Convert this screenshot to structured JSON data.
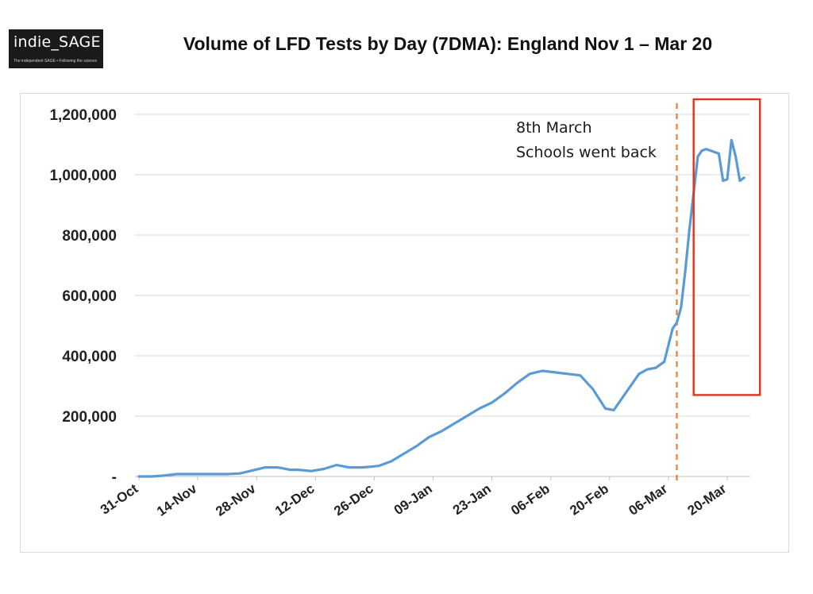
{
  "logo": {
    "text": "indie_SAGE",
    "tagline": "The independent SAGE • Following the science"
  },
  "title": "Volume of LFD Tests by Day (7DMA): England Nov 1 – Mar 20",
  "chart_data": {
    "type": "line",
    "title": "Volume of LFD Tests by Day (7DMA): England Nov 1 – Mar 20",
    "xlabel": "",
    "ylabel": "",
    "ylim": [
      0,
      1200000
    ],
    "y_ticks": [
      0,
      200000,
      400000,
      600000,
      800000,
      1000000,
      1200000
    ],
    "y_tick_labels": [
      "-",
      "200,000",
      "400,000",
      "600,000",
      "800,000",
      "1,000,000",
      "1,200,000"
    ],
    "x_tick_labels": [
      "31-Oct",
      "14-Nov",
      "28-Nov",
      "12-Dec",
      "26-Dec",
      "09-Jan",
      "23-Jan",
      "06-Feb",
      "20-Feb",
      "06-Mar",
      "20-Mar"
    ],
    "x_tick_dates": [
      "2020-10-31",
      "2020-11-14",
      "2020-11-28",
      "2020-12-12",
      "2020-12-26",
      "2021-01-09",
      "2021-01-23",
      "2021-02-06",
      "2021-02-20",
      "2021-03-06",
      "2021-03-20"
    ],
    "x_range": [
      "2020-10-31",
      "2021-03-26"
    ],
    "grid": "horizontal",
    "line_color": "#5b9bd5",
    "series": [
      {
        "x": [
          "2020-10-31",
          "2020-11-03",
          "2020-11-06",
          "2020-11-09",
          "2020-11-12",
          "2020-11-15",
          "2020-11-18",
          "2020-11-21",
          "2020-11-24",
          "2020-11-27",
          "2020-11-30",
          "2020-12-03",
          "2020-12-06",
          "2020-12-08",
          "2020-12-11",
          "2020-12-14",
          "2020-12-17",
          "2020-12-20",
          "2020-12-23",
          "2020-12-25",
          "2020-12-27",
          "2020-12-30",
          "2021-01-02",
          "2021-01-05",
          "2021-01-08",
          "2021-01-11",
          "2021-01-14",
          "2021-01-17",
          "2021-01-20",
          "2021-01-23",
          "2021-01-26",
          "2021-01-29",
          "2021-02-01",
          "2021-02-04",
          "2021-02-07",
          "2021-02-10",
          "2021-02-13",
          "2021-02-16",
          "2021-02-19",
          "2021-02-21",
          "2021-02-24",
          "2021-02-27",
          "2021-03-01",
          "2021-03-03",
          "2021-03-05",
          "2021-03-07",
          "2021-03-08",
          "2021-03-09",
          "2021-03-10",
          "2021-03-11",
          "2021-03-12",
          "2021-03-13",
          "2021-03-14",
          "2021-03-15",
          "2021-03-16",
          "2021-03-17",
          "2021-03-18",
          "2021-03-19",
          "2021-03-20",
          "2021-03-21",
          "2021-03-22",
          "2021-03-23",
          "2021-03-24"
        ],
        "y": [
          0,
          0,
          3000,
          8000,
          8000,
          8000,
          8000,
          8000,
          10000,
          20000,
          30000,
          30000,
          22000,
          22000,
          18000,
          25000,
          38000,
          30000,
          30000,
          32000,
          35000,
          50000,
          75000,
          100000,
          130000,
          150000,
          175000,
          200000,
          225000,
          245000,
          275000,
          310000,
          340000,
          350000,
          345000,
          340000,
          335000,
          290000,
          225000,
          220000,
          280000,
          340000,
          355000,
          360000,
          380000,
          490000,
          510000,
          560000,
          680000,
          820000,
          940000,
          1060000,
          1080000,
          1085000,
          1080000,
          1075000,
          1070000,
          980000,
          985000,
          1115000,
          1060000,
          980000,
          990000
        ]
      }
    ],
    "annotations": [
      {
        "type": "vline",
        "x": "2021-03-08",
        "style": "dashed",
        "color": "#ed7d31"
      },
      {
        "type": "text",
        "lines": [
          "8th March",
          "Schools went back"
        ]
      },
      {
        "type": "box",
        "x_from": "2021-03-12",
        "x_to": "2021-03-24",
        "y_from": 270000,
        "y_to": 1250000,
        "color": "#e0321e"
      }
    ]
  }
}
